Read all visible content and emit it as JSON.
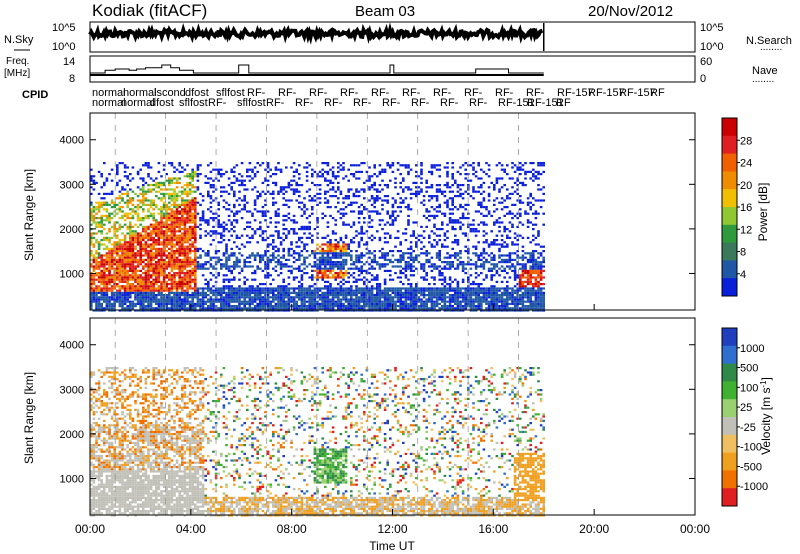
{
  "header": {
    "station": "Kodiak (fitACF)",
    "beam": "Beam 03",
    "date": "20/Nov/2012"
  },
  "side_labels": {
    "nsky": "N.Sky",
    "freq_line1": "Freq.",
    "freq_line2": "[MHz]",
    "cpid": "CPID",
    "nsearch": "N.Search",
    "nave": "Nave",
    "dots": "........"
  },
  "cpid_labels_row1": [
    "normal",
    "normal",
    "lscond",
    "dfost",
    "sflfost",
    "RF-",
    "RF-",
    "RF-",
    "RF-",
    "RF-",
    "RF-",
    "RF-",
    "RF-",
    "RF-",
    "RF-",
    "RF-157",
    "RF-157",
    "RF-157",
    "RF"
  ],
  "cpid_labels_row2": [
    "normal",
    "normal",
    "dfost",
    "sflfost",
    "RF-",
    "sflfost",
    "RF-",
    "RF-",
    "RF-",
    "RF-",
    "RF-",
    "RF-",
    "RF-",
    "RF-",
    "RF-151",
    "RF-151",
    "RF"
  ],
  "chart_data": [
    {
      "type": "line",
      "title": "N.Sky / N.Search",
      "ylabel": "N.Sky",
      "ylabel_right": "N.Search",
      "yscale": "log",
      "ytick_labels_left": [
        "10^5",
        "10^0"
      ],
      "ytick_labels_right": [
        "10^5",
        "10^0"
      ],
      "xlim_hours": [
        0,
        24
      ],
      "data_end_hour": 18.0
    },
    {
      "type": "line",
      "ylabel": "Freq. [MHz]",
      "ylabel_right": "Nave",
      "ytick_labels_left": [
        "14",
        "8"
      ],
      "ytick_labels_right": [
        "60",
        "0"
      ],
      "freq_steps_hours": [
        0.0,
        0.6,
        1.0,
        1.2,
        1.55,
        1.85,
        2.2,
        2.85,
        3.2,
        3.55,
        4.1,
        5.9,
        6.3,
        9.9,
        10.0,
        11.9,
        12.05,
        12.2,
        15.1,
        15.3,
        16.6,
        16.8,
        18.0
      ],
      "freq_steps_level": [
        11,
        12,
        12.5,
        12.5,
        12,
        12.5,
        13,
        14,
        13,
        12,
        11,
        14,
        11,
        11,
        11,
        14,
        11,
        11,
        11,
        12.5,
        11,
        11,
        11
      ]
    },
    {
      "type": "heatmap",
      "title": "Power",
      "ylabel": "Slant Range [km]",
      "ytick_labels": [
        "1000",
        "2000",
        "3000",
        "4000"
      ],
      "ylim": [
        180,
        4600
      ],
      "colorbar_label": "Power [dB]",
      "colorbar_ticks": [
        "4",
        "8",
        "12",
        "16",
        "20",
        "24",
        "28"
      ],
      "colorbar_colors": [
        "#0a1fd9",
        "#1f57a5",
        "#3a7a5a",
        "#2f9a3c",
        "#8fc832",
        "#f0c000",
        "#f08c00",
        "#f06000",
        "#e02020",
        "#cc0000"
      ]
    },
    {
      "type": "heatmap",
      "title": "Velocity",
      "ylabel": "Slant Range [km]",
      "ytick_labels": [
        "1000",
        "2000",
        "3000",
        "4000"
      ],
      "ylim": [
        180,
        4600
      ],
      "colorbar_label": "Velocity [m s^-1]",
      "colorbar_ticks": [
        "1000",
        "500",
        "100",
        "25",
        "-25",
        "-100",
        "-500",
        "-1000"
      ],
      "colorbar_colors": [
        "#1f3fbf",
        "#2f6fd0",
        "#2f8a4a",
        "#40b030",
        "#9ad070",
        "#c0c0b8",
        "#f0c060",
        "#f0a020",
        "#f07000",
        "#e02020"
      ],
      "xlabel": "Time UT",
      "xtick_labels": [
        "00:00",
        "04:00",
        "08:00",
        "12:00",
        "16:00",
        "20:00",
        "00:00"
      ]
    }
  ],
  "colors": {
    "power_low": "#1a33c8",
    "power_high": "#e01818",
    "velocity_ground": "#c4c4bc",
    "velocity_away": "#f09020"
  }
}
